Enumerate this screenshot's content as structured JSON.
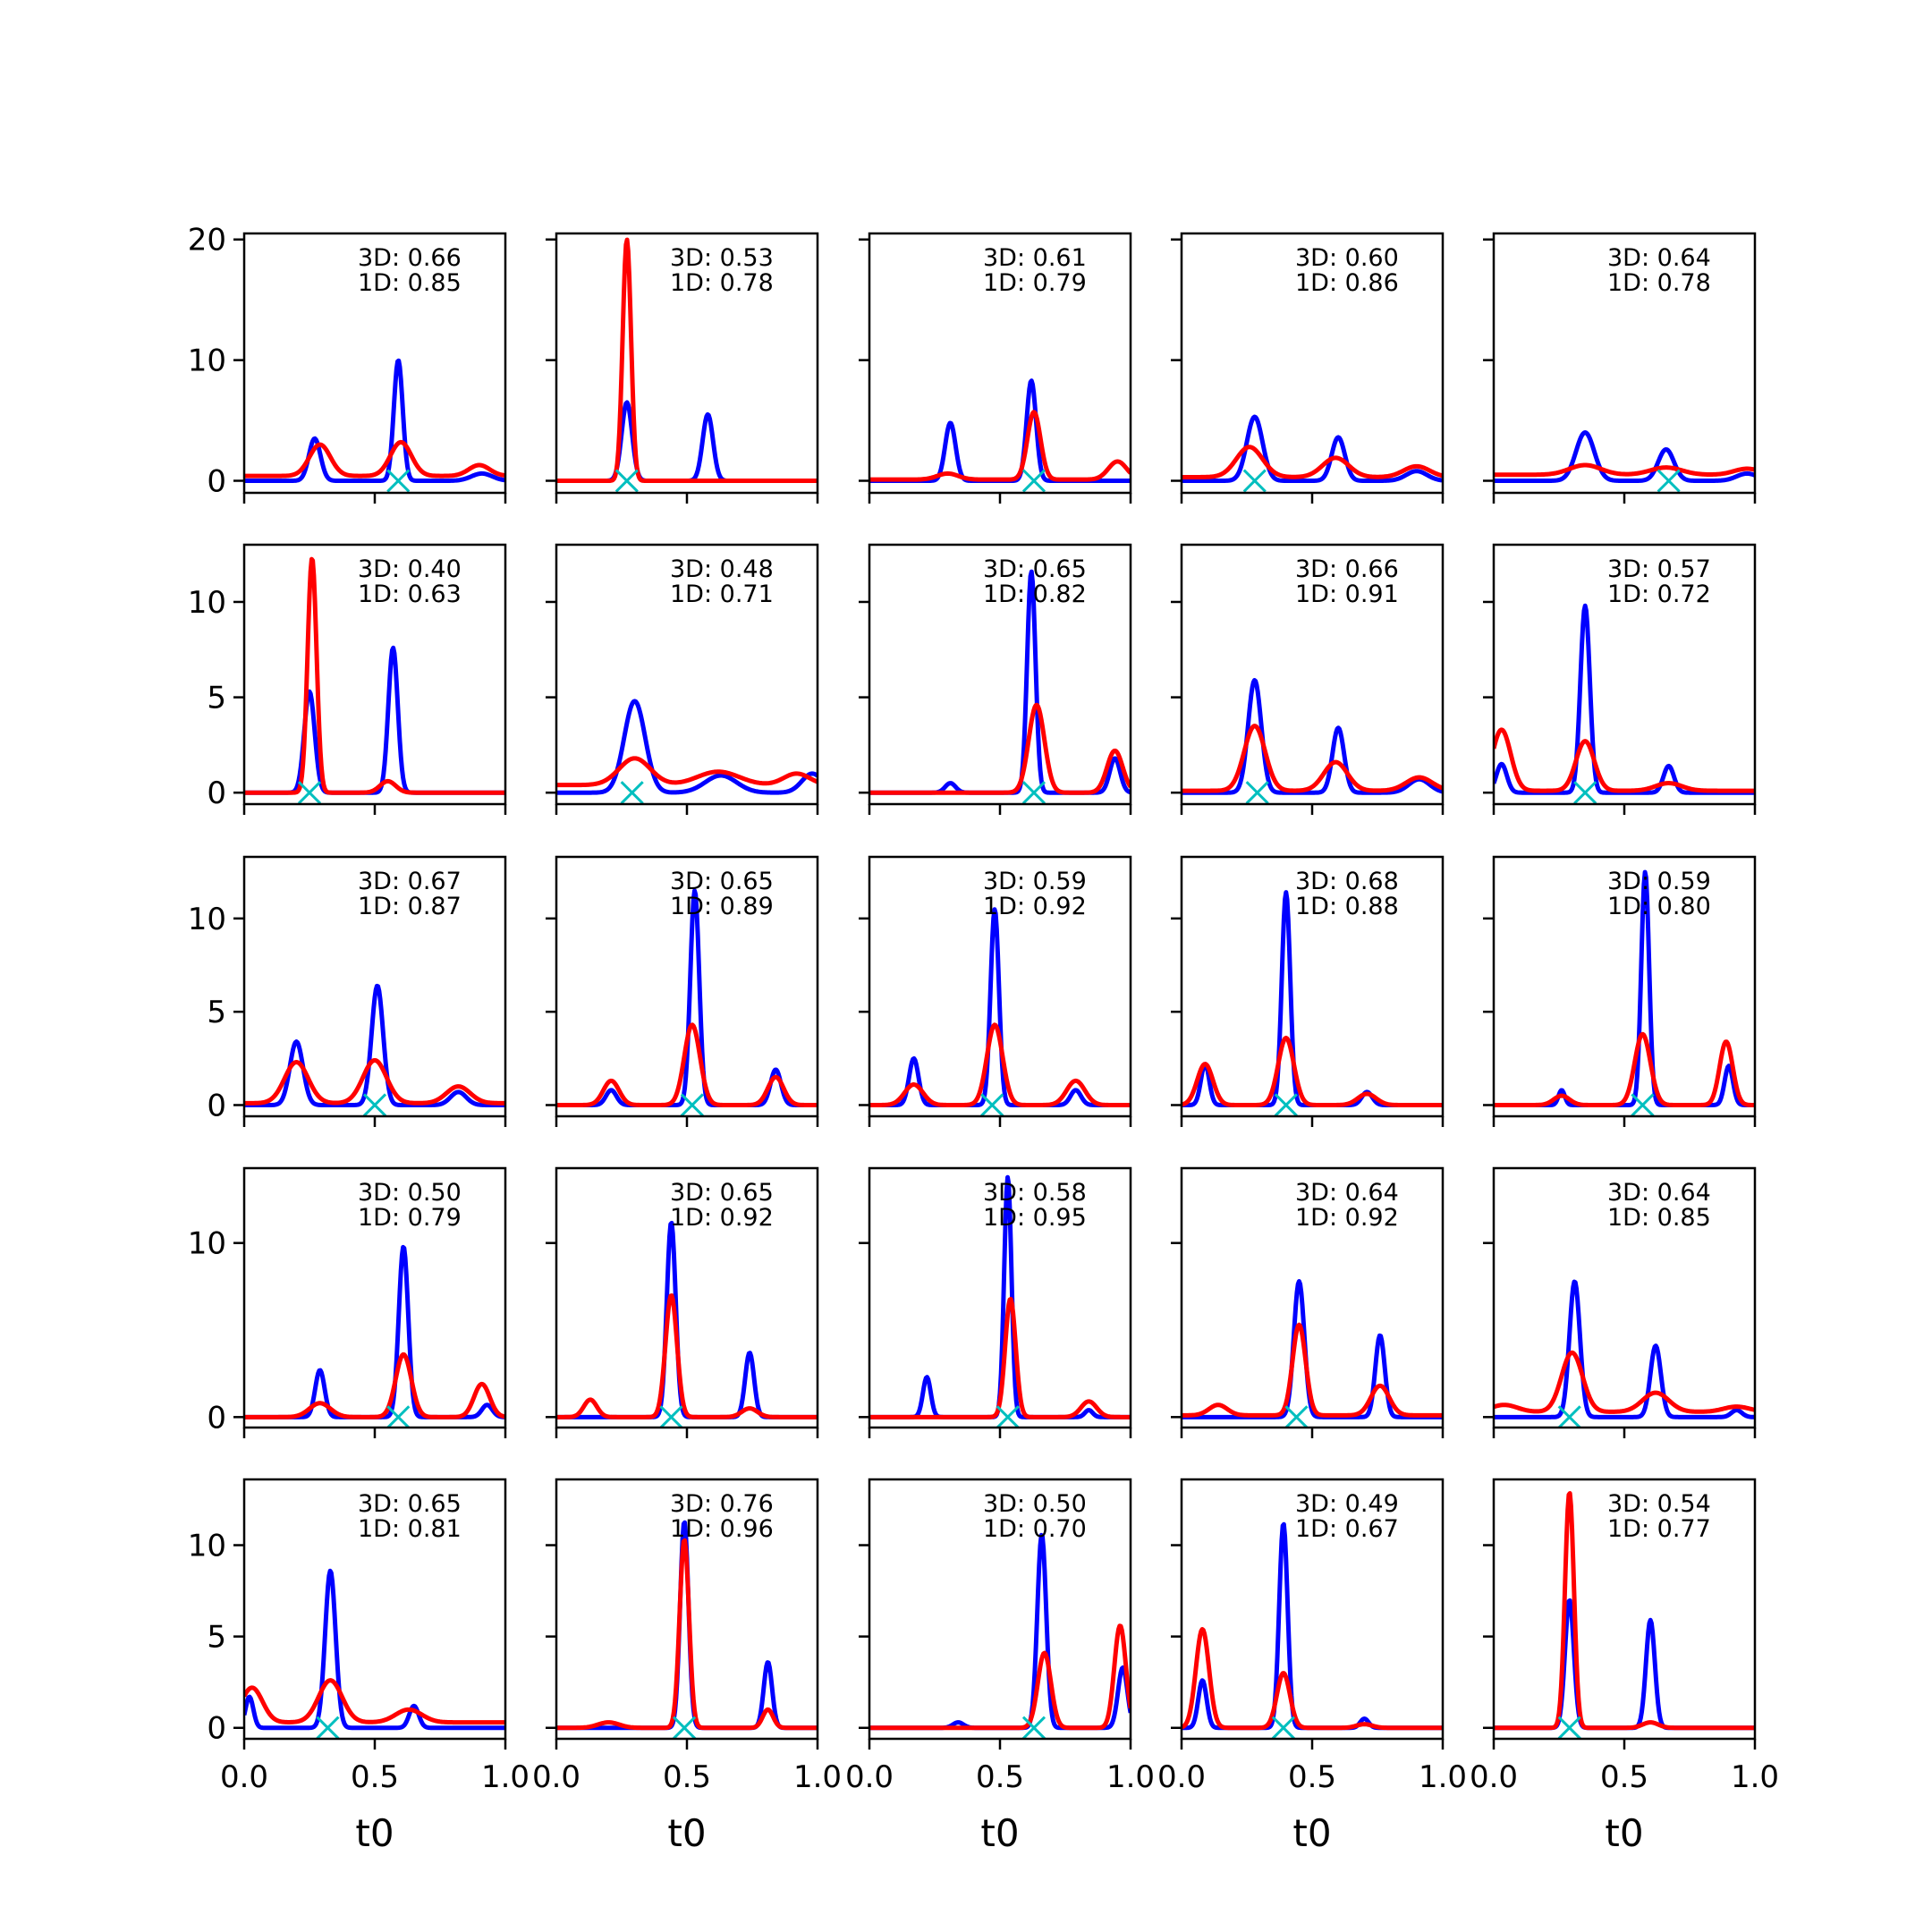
{
  "figure": {
    "rows": 5,
    "cols": 5,
    "x_ticks": [
      "0.0",
      "0.5",
      "1.0"
    ],
    "xlabel": "t0",
    "xlim": [
      0,
      1
    ],
    "row_y_limits": [
      [
        -1,
        20.5
      ],
      [
        -0.6,
        13.0
      ],
      [
        -0.6,
        13.3
      ],
      [
        -0.6,
        14.3
      ],
      [
        -0.6,
        13.6
      ]
    ],
    "row_y_ticks": [
      [
        0,
        10,
        20
      ],
      [
        0,
        5,
        10
      ],
      [
        0,
        5,
        10
      ],
      [
        0,
        10
      ],
      [
        0,
        5,
        10
      ]
    ],
    "series_colors": {
      "3D": "#0000ff",
      "1D": "#ff0000",
      "marker": "#00bfbf"
    }
  },
  "chart_data": {
    "type": "line",
    "layout": "5x5 small multiples",
    "xlabel": "t0",
    "legend": "per-panel annotations top-right",
    "panels": [
      {
        "r": 0,
        "c": 0,
        "s3d": "0.66",
        "s1d": "0.85",
        "marker": 0.59,
        "blue": [
          [
            0.27,
            3.5,
            0.022
          ],
          [
            0.59,
            10.0,
            0.017
          ],
          [
            0.91,
            0.6,
            0.04
          ]
        ],
        "red": [
          [
            0.29,
            2.6,
            0.04
          ],
          [
            0.6,
            2.8,
            0.04
          ],
          [
            0.9,
            0.9,
            0.04
          ]
        ],
        "red_base": 0.4
      },
      {
        "r": 0,
        "c": 1,
        "s3d": "0.53",
        "s1d": "0.78",
        "marker": 0.27,
        "blue": [
          [
            0.27,
            6.5,
            0.02
          ],
          [
            0.58,
            5.5,
            0.02
          ]
        ],
        "red": [
          [
            0.27,
            20.0,
            0.016
          ]
        ],
        "red_base": 0.0
      },
      {
        "r": 0,
        "c": 2,
        "s3d": "0.61",
        "s1d": "0.79",
        "marker": 0.63,
        "blue": [
          [
            0.31,
            4.8,
            0.02
          ],
          [
            0.62,
            8.3,
            0.018
          ]
        ],
        "red": [
          [
            0.3,
            0.5,
            0.04
          ],
          [
            0.63,
            5.6,
            0.025
          ],
          [
            0.95,
            1.5,
            0.035
          ]
        ],
        "red_base": 0.1
      },
      {
        "r": 0,
        "c": 3,
        "s3d": "0.60",
        "s1d": "0.86",
        "marker": 0.28,
        "blue": [
          [
            0.28,
            5.3,
            0.03
          ],
          [
            0.6,
            3.6,
            0.025
          ],
          [
            0.9,
            0.8,
            0.04
          ]
        ],
        "red": [
          [
            0.26,
            2.5,
            0.05
          ],
          [
            0.59,
            1.6,
            0.05
          ],
          [
            0.9,
            0.9,
            0.05
          ]
        ],
        "red_base": 0.3
      },
      {
        "r": 0,
        "c": 4,
        "s3d": "0.64",
        "s1d": "0.78",
        "marker": 0.67,
        "blue": [
          [
            0.35,
            4.0,
            0.035
          ],
          [
            0.66,
            2.6,
            0.03
          ],
          [
            0.97,
            0.6,
            0.04
          ]
        ],
        "red": [
          [
            0.35,
            0.8,
            0.06
          ],
          [
            0.66,
            0.6,
            0.06
          ],
          [
            0.97,
            0.5,
            0.05
          ]
        ],
        "red_base": 0.5
      },
      {
        "r": 1,
        "c": 0,
        "s3d": "0.40",
        "s1d": "0.63",
        "marker": 0.25,
        "blue": [
          [
            0.25,
            5.3,
            0.02
          ],
          [
            0.57,
            7.6,
            0.018
          ]
        ],
        "red": [
          [
            0.26,
            12.3,
            0.017
          ],
          [
            0.55,
            0.6,
            0.03
          ]
        ],
        "red_base": 0.0
      },
      {
        "r": 1,
        "c": 1,
        "s3d": "0.48",
        "s1d": "0.71",
        "marker": 0.29,
        "blue": [
          [
            0.3,
            4.8,
            0.04
          ],
          [
            0.63,
            0.9,
            0.06
          ],
          [
            0.98,
            1.0,
            0.04
          ]
        ],
        "red": [
          [
            0.3,
            1.4,
            0.06
          ],
          [
            0.62,
            0.7,
            0.08
          ],
          [
            0.92,
            0.6,
            0.05
          ]
        ],
        "red_base": 0.4
      },
      {
        "r": 1,
        "c": 2,
        "s3d": "0.65",
        "s1d": "0.82",
        "marker": 0.63,
        "blue": [
          [
            0.31,
            0.5,
            0.02
          ],
          [
            0.62,
            11.6,
            0.016
          ],
          [
            0.94,
            1.8,
            0.02
          ]
        ],
        "red": [
          [
            0.64,
            4.6,
            0.03
          ],
          [
            0.94,
            2.2,
            0.03
          ]
        ],
        "red_base": 0.0
      },
      {
        "r": 1,
        "c": 3,
        "s3d": "0.66",
        "s1d": "0.91",
        "marker": 0.29,
        "blue": [
          [
            0.28,
            5.9,
            0.025
          ],
          [
            0.6,
            3.4,
            0.022
          ],
          [
            0.91,
            0.7,
            0.04
          ]
        ],
        "red": [
          [
            0.28,
            3.4,
            0.04
          ],
          [
            0.59,
            1.5,
            0.045
          ],
          [
            0.91,
            0.7,
            0.05
          ]
        ],
        "red_base": 0.1
      },
      {
        "r": 1,
        "c": 4,
        "s3d": "0.57",
        "s1d": "0.72",
        "marker": 0.35,
        "blue": [
          [
            0.03,
            1.5,
            0.02
          ],
          [
            0.35,
            9.8,
            0.018
          ],
          [
            0.67,
            1.4,
            0.02
          ]
        ],
        "red": [
          [
            0.03,
            3.2,
            0.035
          ],
          [
            0.35,
            2.6,
            0.035
          ],
          [
            0.67,
            0.4,
            0.05
          ]
        ],
        "red_base": 0.1
      },
      {
        "r": 2,
        "c": 0,
        "s3d": "0.67",
        "s1d": "0.87",
        "marker": 0.5,
        "blue": [
          [
            0.2,
            3.4,
            0.025
          ],
          [
            0.51,
            6.4,
            0.022
          ],
          [
            0.82,
            0.7,
            0.03
          ]
        ],
        "red": [
          [
            0.2,
            2.2,
            0.045
          ],
          [
            0.5,
            2.3,
            0.045
          ],
          [
            0.82,
            0.9,
            0.045
          ]
        ],
        "red_base": 0.1
      },
      {
        "r": 2,
        "c": 1,
        "s3d": "0.65",
        "s1d": "0.89",
        "marker": 0.52,
        "blue": [
          [
            0.21,
            0.8,
            0.02
          ],
          [
            0.53,
            11.5,
            0.017
          ],
          [
            0.84,
            1.9,
            0.02
          ]
        ],
        "red": [
          [
            0.21,
            1.3,
            0.03
          ],
          [
            0.52,
            4.3,
            0.03
          ],
          [
            0.84,
            1.5,
            0.03
          ]
        ],
        "red_base": 0.0
      },
      {
        "r": 2,
        "c": 2,
        "s3d": "0.59",
        "s1d": "0.92",
        "marker": 0.47,
        "blue": [
          [
            0.17,
            2.5,
            0.018
          ],
          [
            0.48,
            10.5,
            0.016
          ],
          [
            0.79,
            0.8,
            0.02
          ]
        ],
        "red": [
          [
            0.17,
            1.1,
            0.035
          ],
          [
            0.48,
            4.3,
            0.03
          ],
          [
            0.79,
            1.3,
            0.035
          ]
        ],
        "red_base": 0.0
      },
      {
        "r": 2,
        "c": 3,
        "s3d": "0.68",
        "s1d": "0.88",
        "marker": 0.4,
        "blue": [
          [
            0.09,
            2.2,
            0.016
          ],
          [
            0.4,
            11.4,
            0.016
          ],
          [
            0.71,
            0.7,
            0.02
          ]
        ],
        "red": [
          [
            0.09,
            2.2,
            0.03
          ],
          [
            0.4,
            3.6,
            0.03
          ],
          [
            0.71,
            0.6,
            0.035
          ]
        ],
        "red_base": 0.0
      },
      {
        "r": 2,
        "c": 4,
        "s3d": "0.59",
        "s1d": "0.80",
        "marker": 0.57,
        "blue": [
          [
            0.26,
            0.8,
            0.012
          ],
          [
            0.58,
            12.5,
            0.015
          ],
          [
            0.9,
            2.1,
            0.016
          ]
        ],
        "red": [
          [
            0.26,
            0.5,
            0.03
          ],
          [
            0.57,
            3.8,
            0.03
          ],
          [
            0.89,
            3.4,
            0.025
          ]
        ],
        "red_base": 0.0
      },
      {
        "r": 3,
        "c": 0,
        "s3d": "0.50",
        "s1d": "0.79",
        "marker": 0.59,
        "blue": [
          [
            0.29,
            2.7,
            0.018
          ],
          [
            0.61,
            9.8,
            0.018
          ],
          [
            0.93,
            0.7,
            0.02
          ]
        ],
        "red": [
          [
            0.29,
            0.8,
            0.04
          ],
          [
            0.61,
            3.6,
            0.03
          ],
          [
            0.91,
            1.9,
            0.03
          ]
        ],
        "red_base": 0.0
      },
      {
        "r": 3,
        "c": 1,
        "s3d": "0.65",
        "s1d": "0.92",
        "marker": 0.44,
        "blue": [
          [
            0.44,
            11.2,
            0.017
          ],
          [
            0.74,
            3.7,
            0.017
          ]
        ],
        "red": [
          [
            0.13,
            1.0,
            0.025
          ],
          [
            0.44,
            7.0,
            0.022
          ],
          [
            0.74,
            0.5,
            0.03
          ]
        ],
        "red_base": 0.0
      },
      {
        "r": 3,
        "c": 2,
        "s3d": "0.58",
        "s1d": "0.95",
        "marker": 0.53,
        "blue": [
          [
            0.22,
            2.3,
            0.015
          ],
          [
            0.53,
            13.8,
            0.014
          ],
          [
            0.84,
            0.4,
            0.015
          ]
        ],
        "red": [
          [
            0.54,
            6.8,
            0.02
          ],
          [
            0.84,
            0.9,
            0.03
          ]
        ],
        "red_base": 0.0
      },
      {
        "r": 3,
        "c": 3,
        "s3d": "0.64",
        "s1d": "0.92",
        "marker": 0.44,
        "blue": [
          [
            0.45,
            7.8,
            0.02
          ],
          [
            0.76,
            4.7,
            0.018
          ]
        ],
        "red": [
          [
            0.14,
            0.6,
            0.035
          ],
          [
            0.45,
            5.2,
            0.025
          ],
          [
            0.76,
            1.7,
            0.035
          ]
        ],
        "red_base": 0.1
      },
      {
        "r": 3,
        "c": 4,
        "s3d": "0.64",
        "s1d": "0.85",
        "marker": 0.29,
        "blue": [
          [
            0.31,
            7.8,
            0.02
          ],
          [
            0.62,
            4.1,
            0.02
          ],
          [
            0.93,
            0.4,
            0.02
          ]
        ],
        "red": [
          [
            0.04,
            0.4,
            0.05
          ],
          [
            0.3,
            3.4,
            0.04
          ],
          [
            0.62,
            1.1,
            0.05
          ],
          [
            0.93,
            0.3,
            0.05
          ]
        ],
        "red_base": 0.3
      },
      {
        "r": 4,
        "c": 0,
        "s3d": "0.65",
        "s1d": "0.81",
        "marker": 0.32,
        "blue": [
          [
            0.02,
            1.7,
            0.015
          ],
          [
            0.33,
            8.6,
            0.02
          ],
          [
            0.65,
            1.2,
            0.018
          ]
        ],
        "red": [
          [
            0.03,
            1.9,
            0.04
          ],
          [
            0.33,
            2.3,
            0.045
          ],
          [
            0.63,
            0.7,
            0.05
          ]
        ],
        "red_base": 0.3
      },
      {
        "r": 4,
        "c": 1,
        "s3d": "0.76",
        "s1d": "0.96",
        "marker": 0.49,
        "blue": [
          [
            0.49,
            11.3,
            0.016
          ],
          [
            0.81,
            3.6,
            0.016
          ]
        ],
        "red": [
          [
            0.49,
            10.3,
            0.018
          ],
          [
            0.81,
            1.0,
            0.02
          ],
          [
            0.2,
            0.3,
            0.04
          ]
        ],
        "red_base": 0.0
      },
      {
        "r": 4,
        "c": 2,
        "s3d": "0.50",
        "s1d": "0.70",
        "marker": 0.63,
        "blue": [
          [
            0.34,
            0.3,
            0.02
          ],
          [
            0.66,
            10.6,
            0.017
          ],
          [
            0.97,
            3.3,
            0.018
          ]
        ],
        "red": [
          [
            0.67,
            4.1,
            0.025
          ],
          [
            0.96,
            5.6,
            0.022
          ]
        ],
        "red_base": 0.0
      },
      {
        "r": 4,
        "c": 3,
        "s3d": "0.49",
        "s1d": "0.67",
        "marker": 0.39,
        "blue": [
          [
            0.08,
            2.6,
            0.016
          ],
          [
            0.39,
            11.2,
            0.016
          ],
          [
            0.7,
            0.5,
            0.016
          ]
        ],
        "red": [
          [
            0.08,
            5.4,
            0.025
          ],
          [
            0.39,
            3.0,
            0.025
          ],
          [
            0.7,
            0.2,
            0.03
          ]
        ],
        "red_base": 0.0
      },
      {
        "r": 4,
        "c": 4,
        "s3d": "0.54",
        "s1d": "0.77",
        "marker": 0.29,
        "blue": [
          [
            0.29,
            7.0,
            0.017
          ],
          [
            0.6,
            5.9,
            0.017
          ]
        ],
        "red": [
          [
            0.29,
            12.9,
            0.017
          ],
          [
            0.6,
            0.3,
            0.03
          ]
        ],
        "red_base": 0.0
      }
    ]
  }
}
